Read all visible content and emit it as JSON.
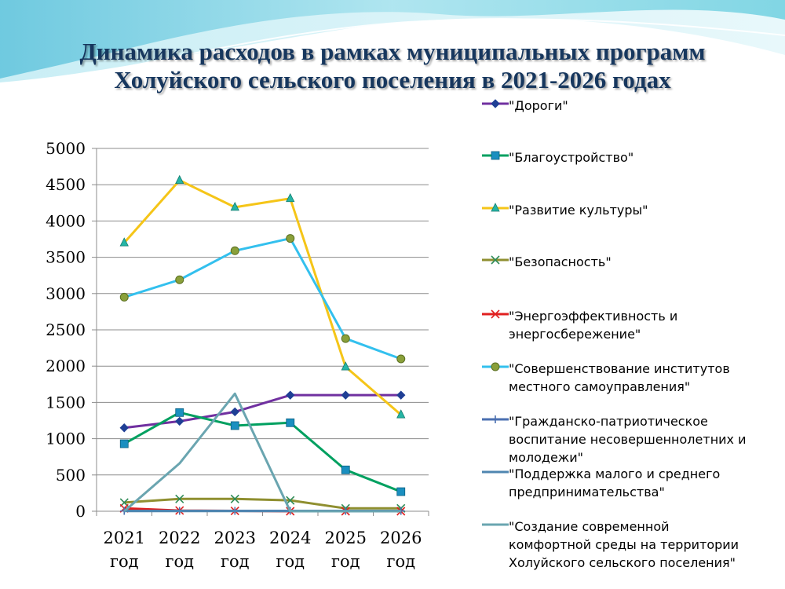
{
  "title": {
    "line1": "Динамика расходов в рамках муниципальных программ",
    "line2": "Холуйского сельского поселения в 2021-2026 годах"
  },
  "chart_data": {
    "type": "line",
    "categories": [
      "2021 год",
      "2022 год",
      "2023 год",
      "2024 год",
      "2025 год",
      "2026 год"
    ],
    "category_lines": [
      [
        "2021",
        "год"
      ],
      [
        "2022",
        "год"
      ],
      [
        "2023",
        "год"
      ],
      [
        "2024",
        "год"
      ],
      [
        "2025",
        "год"
      ],
      [
        "2026",
        "год"
      ]
    ],
    "ylim": [
      0,
      5000
    ],
    "yticks": [
      0,
      500,
      1000,
      1500,
      2000,
      2500,
      3000,
      3500,
      4000,
      4500,
      5000
    ],
    "grid": true,
    "legend_position": "right",
    "series": [
      {
        "name": "\"Дороги\"",
        "color": "#7030a0",
        "marker": "diamond",
        "marker_color": "#1f3f95",
        "values": [
          1150,
          1240,
          1370,
          1600,
          1600,
          1600
        ]
      },
      {
        "name": "\"Благоустройство\"",
        "color": "#00a060",
        "marker": "square",
        "marker_color": "#1a8fc0",
        "values": [
          930,
          1360,
          1180,
          1220,
          570,
          270
        ]
      },
      {
        "name": "\"Развитие культуры\"",
        "color": "#f5c518",
        "marker": "triangle",
        "marker_color": "#26b5a5",
        "values": [
          3700,
          4560,
          4190,
          4310,
          1990,
          1330
        ]
      },
      {
        "name": "\"Безопасность\"",
        "color": "#8f8f30",
        "marker": "x",
        "marker_color": "#2e8b57",
        "values": [
          120,
          170,
          170,
          150,
          40,
          40
        ]
      },
      {
        "name": "\"Энергоэффективность и энергосбережение\"",
        "color": "#e02020",
        "marker": "x",
        "marker_color": "#e02020",
        "values": [
          40,
          10,
          5,
          0,
          0,
          0
        ]
      },
      {
        "name": "\"Совершенствование институтов местного самоуправления\"",
        "color": "#33c0ee",
        "marker": "circle",
        "marker_color": "#8aa03a",
        "values": [
          2950,
          3190,
          3590,
          3760,
          2380,
          2100
        ]
      },
      {
        "name": "\"Гражданско-патриотическое воспитание несовершеннолетних и молодежи\"",
        "color": "#4a6fb0",
        "marker": "plus",
        "marker_color": "#4a6fb0",
        "values": [
          5,
          5,
          5,
          5,
          5,
          5
        ]
      },
      {
        "name": "\"Поддержка малого и среднего предпринимательства\"",
        "color": "#4f86b0",
        "marker": "none",
        "marker_color": "#4f86b0",
        "values": [
          3,
          3,
          3,
          3,
          3,
          3
        ]
      },
      {
        "name": "\"Создание современной комфортной среды на территории Холуйского сельского поселения\"",
        "color": "#6aa5b0",
        "marker": "none",
        "marker_color": "#6aa5b0",
        "values": [
          0,
          660,
          1620,
          0,
          0,
          0
        ]
      }
    ]
  },
  "legend": {
    "items": [
      {
        "lines": [
          "\"Дороги\""
        ]
      },
      {
        "lines": [
          "\"Благоустройство\""
        ]
      },
      {
        "lines": [
          "\"Развитие культуры\""
        ]
      },
      {
        "lines": [
          "\"Безопасность\""
        ]
      },
      {
        "lines": [
          "\"Энергоэффективность и",
          "энергосбережение\""
        ]
      },
      {
        "lines": [
          "\"Совершенствование институтов",
          "местного самоуправления\""
        ]
      },
      {
        "lines": [
          "\"Гражданско-патриотическое",
          "воспитание несовершеннолетних и",
          "молодежи\""
        ]
      },
      {
        "lines": [
          "\"Поддержка малого и среднего",
          "предпринимательства\""
        ]
      },
      {
        "lines": [
          "\"Создание современной",
          "комфортной среды на территории",
          "Холуйского сельского поселения\""
        ]
      }
    ]
  }
}
